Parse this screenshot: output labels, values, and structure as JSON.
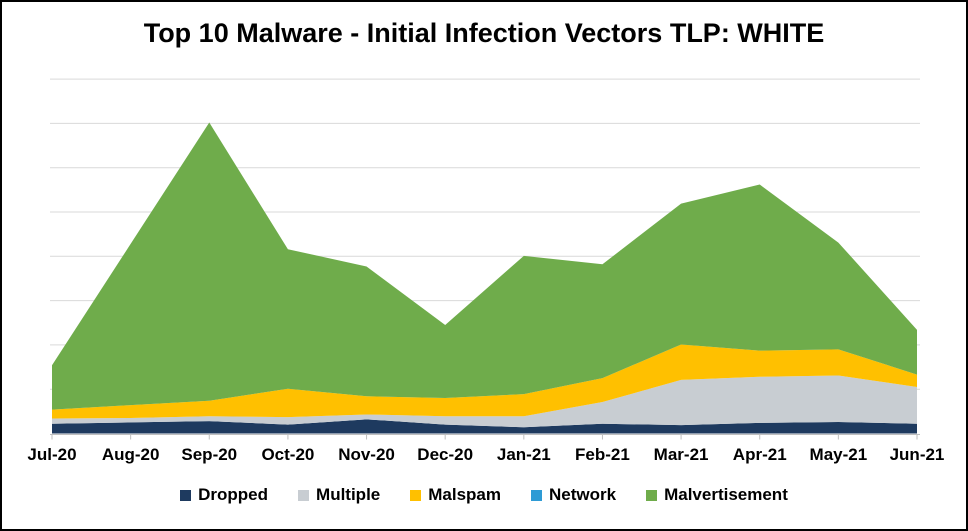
{
  "title": "Top 10 Malware - Initial Infection Vectors TLP: WHITE",
  "chart_data": {
    "type": "area",
    "stacked": true,
    "title": "Top 10 Malware - Initial Infection Vectors TLP: WHITE",
    "xlabel": "",
    "ylabel": "",
    "categories": [
      "Jul-20",
      "Aug-20",
      "Sep-20",
      "Oct-20",
      "Nov-20",
      "Dec-20",
      "Jan-21",
      "Feb-21",
      "Mar-21",
      "Apr-21",
      "May-21",
      "Jun-21"
    ],
    "series": [
      {
        "name": "Dropped",
        "color": "#1E3A5F",
        "values": [
          22,
          25,
          28,
          20,
          32,
          20,
          14,
          22,
          19,
          24,
          26,
          22
        ]
      },
      {
        "name": "Multiple",
        "color": "#C8CDD2",
        "values": [
          12,
          10,
          11,
          17,
          11,
          19,
          25,
          49,
          102,
          104,
          105,
          83
        ]
      },
      {
        "name": "Malspam",
        "color": "#FFC000",
        "values": [
          20,
          29,
          35,
          64,
          41,
          41,
          50,
          54,
          80,
          59,
          59,
          28
        ]
      },
      {
        "name": "Network",
        "color": "#2E9BD5",
        "values": [
          0,
          0,
          0,
          0,
          0,
          0,
          0,
          0,
          0,
          0,
          0,
          0
        ]
      },
      {
        "name": "Malvertisement",
        "color": "#6FAC4B",
        "values": [
          100,
          364,
          628,
          315,
          293,
          165,
          312,
          257,
          318,
          375,
          241,
          101
        ]
      }
    ],
    "ylim": [
      0,
      800
    ],
    "y_gridline_step": 100,
    "y_axis_labels_visible": false,
    "grid": true,
    "gridline_color": "#D9D9D9",
    "axis_color": "#BFBFBF",
    "legend_position": "bottom"
  }
}
